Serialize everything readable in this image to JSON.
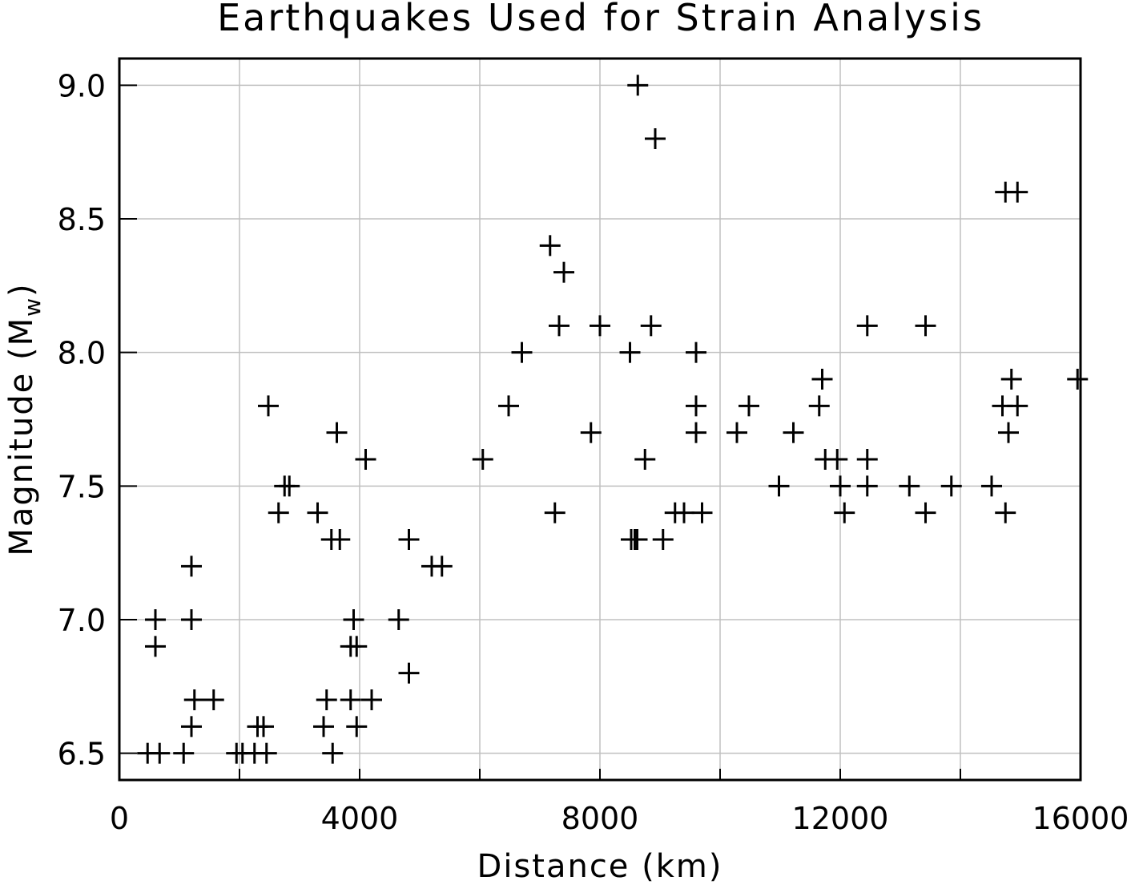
{
  "chart_data": {
    "type": "scatter",
    "title": "Earthquakes Used for Strain Analysis",
    "xlabel": "Distance (km)",
    "ylabel_main": "Magnitude (M",
    "ylabel_sub": "w",
    "ylabel_close": ")",
    "xlim": [
      0,
      16000
    ],
    "ylim": [
      6.4,
      9.1
    ],
    "xticks": [
      0,
      4000,
      8000,
      12000,
      16000
    ],
    "xtick_labels": [
      "0",
      "4000",
      "8000",
      "12000",
      "16000"
    ],
    "yticks": [
      6.5,
      7.0,
      7.5,
      8.0,
      8.5,
      9.0
    ],
    "ytick_labels": [
      "6.5",
      "7.0",
      "7.5",
      "8.0",
      "8.5",
      "9.0"
    ],
    "grid": true,
    "marker": "plus",
    "points": [
      {
        "x": 470,
        "y": 6.5
      },
      {
        "x": 670,
        "y": 6.5
      },
      {
        "x": 1070,
        "y": 6.5
      },
      {
        "x": 600,
        "y": 7.0
      },
      {
        "x": 600,
        "y": 6.9
      },
      {
        "x": 1200,
        "y": 7.2
      },
      {
        "x": 1200,
        "y": 7.0
      },
      {
        "x": 1200,
        "y": 6.6
      },
      {
        "x": 1250,
        "y": 6.7
      },
      {
        "x": 1570,
        "y": 6.7
      },
      {
        "x": 1950,
        "y": 6.5
      },
      {
        "x": 2050,
        "y": 6.5
      },
      {
        "x": 2250,
        "y": 6.5
      },
      {
        "x": 2450,
        "y": 6.5
      },
      {
        "x": 2300,
        "y": 6.6
      },
      {
        "x": 2400,
        "y": 6.6
      },
      {
        "x": 2480,
        "y": 7.8
      },
      {
        "x": 2650,
        "y": 7.4
      },
      {
        "x": 2750,
        "y": 7.5
      },
      {
        "x": 2830,
        "y": 7.5
      },
      {
        "x": 3300,
        "y": 7.4
      },
      {
        "x": 3450,
        "y": 6.7
      },
      {
        "x": 3400,
        "y": 6.6
      },
      {
        "x": 3550,
        "y": 6.5
      },
      {
        "x": 3530,
        "y": 7.3
      },
      {
        "x": 3670,
        "y": 7.3
      },
      {
        "x": 3620,
        "y": 7.7
      },
      {
        "x": 3850,
        "y": 6.9
      },
      {
        "x": 3950,
        "y": 6.9
      },
      {
        "x": 3900,
        "y": 7.0
      },
      {
        "x": 3850,
        "y": 6.7
      },
      {
        "x": 3950,
        "y": 6.6
      },
      {
        "x": 4200,
        "y": 6.7
      },
      {
        "x": 4100,
        "y": 7.6
      },
      {
        "x": 4650,
        "y": 7.0
      },
      {
        "x": 4820,
        "y": 7.3
      },
      {
        "x": 4820,
        "y": 6.8
      },
      {
        "x": 5200,
        "y": 7.2
      },
      {
        "x": 5370,
        "y": 7.2
      },
      {
        "x": 6050,
        "y": 7.6
      },
      {
        "x": 6480,
        "y": 7.8
      },
      {
        "x": 6700,
        "y": 8.0
      },
      {
        "x": 7170,
        "y": 8.4
      },
      {
        "x": 7250,
        "y": 7.4
      },
      {
        "x": 7320,
        "y": 8.1
      },
      {
        "x": 7400,
        "y": 8.3
      },
      {
        "x": 7850,
        "y": 7.7
      },
      {
        "x": 8000,
        "y": 8.1
      },
      {
        "x": 8500,
        "y": 8.0
      },
      {
        "x": 8520,
        "y": 7.3
      },
      {
        "x": 8580,
        "y": 7.3
      },
      {
        "x": 8620,
        "y": 7.3
      },
      {
        "x": 8630,
        "y": 9.0
      },
      {
        "x": 8750,
        "y": 7.6
      },
      {
        "x": 8850,
        "y": 8.1
      },
      {
        "x": 8920,
        "y": 8.8
      },
      {
        "x": 9050,
        "y": 7.3
      },
      {
        "x": 9250,
        "y": 7.4
      },
      {
        "x": 9400,
        "y": 7.4
      },
      {
        "x": 9600,
        "y": 8.0
      },
      {
        "x": 9600,
        "y": 7.8
      },
      {
        "x": 9600,
        "y": 7.7
      },
      {
        "x": 9700,
        "y": 7.4
      },
      {
        "x": 10280,
        "y": 7.7
      },
      {
        "x": 10480,
        "y": 7.8
      },
      {
        "x": 10980,
        "y": 7.5
      },
      {
        "x": 11220,
        "y": 7.7
      },
      {
        "x": 11650,
        "y": 7.8
      },
      {
        "x": 11700,
        "y": 7.9
      },
      {
        "x": 11750,
        "y": 7.6
      },
      {
        "x": 11950,
        "y": 7.6
      },
      {
        "x": 12000,
        "y": 7.5
      },
      {
        "x": 12070,
        "y": 7.4
      },
      {
        "x": 12450,
        "y": 7.6
      },
      {
        "x": 12450,
        "y": 7.5
      },
      {
        "x": 12450,
        "y": 8.1
      },
      {
        "x": 13150,
        "y": 7.5
      },
      {
        "x": 13420,
        "y": 8.1
      },
      {
        "x": 13420,
        "y": 7.4
      },
      {
        "x": 13850,
        "y": 7.5
      },
      {
        "x": 14520,
        "y": 7.5
      },
      {
        "x": 14700,
        "y": 7.8
      },
      {
        "x": 14750,
        "y": 7.4
      },
      {
        "x": 14800,
        "y": 7.7
      },
      {
        "x": 14850,
        "y": 7.9
      },
      {
        "x": 14950,
        "y": 7.8
      },
      {
        "x": 14750,
        "y": 8.6
      },
      {
        "x": 14950,
        "y": 8.6
      },
      {
        "x": 15950,
        "y": 7.9
      }
    ]
  }
}
